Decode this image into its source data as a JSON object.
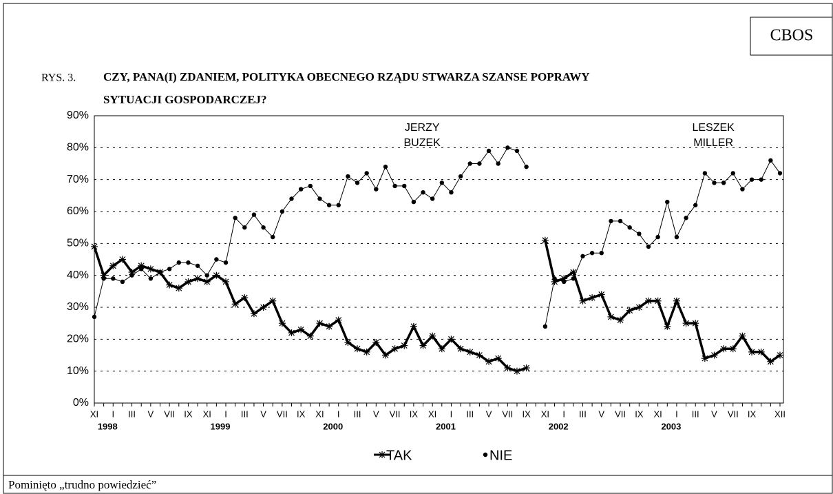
{
  "header": {
    "badge": "CBOS",
    "figure": "RYS. 3.",
    "title_lines": [
      "CZY, PANA(I) ZDANIEM, POLITYKA OBECNEGO RZĄDU STWARZA SZANSE POPRAWY",
      "SYTUACJI GOSPODARCZEJ?"
    ]
  },
  "chart_data": {
    "type": "line",
    "categories": [
      "XI",
      null,
      "I",
      null,
      "III",
      null,
      "V",
      null,
      "VII",
      null,
      "IX",
      null,
      "XI",
      null,
      "I",
      null,
      "III",
      null,
      "V",
      null,
      "VII",
      null,
      "IX",
      null,
      "XI",
      null,
      "I",
      null,
      "III",
      null,
      "V",
      null,
      "VII",
      null,
      "IX",
      null,
      "XI",
      null,
      "I",
      null,
      "III",
      null,
      "V",
      null,
      "VII",
      null,
      "IX",
      null,
      "XI",
      null,
      "I",
      null,
      "III",
      null,
      "V",
      null,
      "VII",
      null,
      "IX",
      null,
      "XI",
      null,
      "I",
      null,
      "III",
      null,
      "V",
      null,
      "VII",
      null,
      "IX",
      null,
      null,
      "XII"
    ],
    "year_categories": [
      null,
      null,
      "1998",
      null,
      null,
      null,
      null,
      null,
      null,
      null,
      null,
      null,
      null,
      null,
      "1999",
      null,
      null,
      null,
      null,
      null,
      null,
      null,
      null,
      null,
      null,
      null,
      "2000",
      null,
      null,
      null,
      null,
      null,
      null,
      null,
      null,
      null,
      null,
      null,
      "2001",
      null,
      null,
      null,
      null,
      null,
      null,
      null,
      null,
      null,
      null,
      null,
      "2002",
      null,
      null,
      null,
      null,
      null,
      null,
      null,
      null,
      null,
      null,
      null,
      "2003",
      null,
      null,
      null,
      null,
      null,
      null,
      null,
      null,
      null,
      null,
      null
    ],
    "series": [
      {
        "name": "TAK",
        "color": "#000000",
        "marker": "star",
        "values": [
          49,
          40,
          43,
          45,
          41,
          43,
          42,
          41,
          37,
          36,
          38,
          39,
          38,
          40,
          38,
          31,
          33,
          28,
          30,
          32,
          25,
          22,
          23,
          21,
          25,
          24,
          26,
          19,
          17,
          16,
          19,
          15,
          17,
          18,
          24,
          18,
          21,
          17,
          20,
          17,
          16,
          15,
          13,
          14,
          11,
          10,
          11,
          null,
          51,
          38,
          39,
          41,
          32,
          33,
          34,
          27,
          26,
          29,
          30,
          32,
          32,
          24,
          32,
          25,
          25,
          14,
          15,
          17,
          17,
          21,
          16,
          16,
          13,
          15
        ]
      },
      {
        "name": "NIE",
        "color": "#000000",
        "marker": "dot",
        "values": [
          27,
          39,
          39,
          38,
          40,
          42,
          39,
          41,
          42,
          44,
          44,
          43,
          40,
          45,
          44,
          58,
          55,
          59,
          55,
          52,
          60,
          64,
          67,
          68,
          64,
          62,
          62,
          71,
          69,
          72,
          67,
          74,
          68,
          68,
          63,
          66,
          64,
          69,
          66,
          71,
          75,
          75,
          79,
          75,
          80,
          79,
          74,
          null,
          24,
          39,
          38,
          39,
          46,
          47,
          47,
          57,
          57,
          55,
          53,
          49,
          52,
          63,
          52,
          58,
          62,
          72,
          69,
          69,
          72,
          67,
          70,
          70,
          76,
          72
        ]
      }
    ],
    "ylim": [
      0,
      90
    ],
    "yticks": [
      {
        "value": 0,
        "label": "0%"
      },
      {
        "value": 10,
        "label": "10%"
      },
      {
        "value": 20,
        "label": "20%"
      },
      {
        "value": 30,
        "label": "30%"
      },
      {
        "value": 40,
        "label": "40%"
      },
      {
        "value": 50,
        "label": "50%"
      },
      {
        "value": 60,
        "label": "60%"
      },
      {
        "value": 70,
        "label": "70%"
      },
      {
        "value": 80,
        "label": "80%"
      },
      {
        "value": 90,
        "label": "90%"
      }
    ],
    "grid": true,
    "annotations": [
      {
        "lines": [
          "JERZY",
          "BUZEK"
        ],
        "category_index": 36
      },
      {
        "lines": [
          "LESZEK",
          "MILLER"
        ],
        "category_index": 67
      }
    ]
  },
  "footer": "Pominięto „trudno powiedzieć”"
}
